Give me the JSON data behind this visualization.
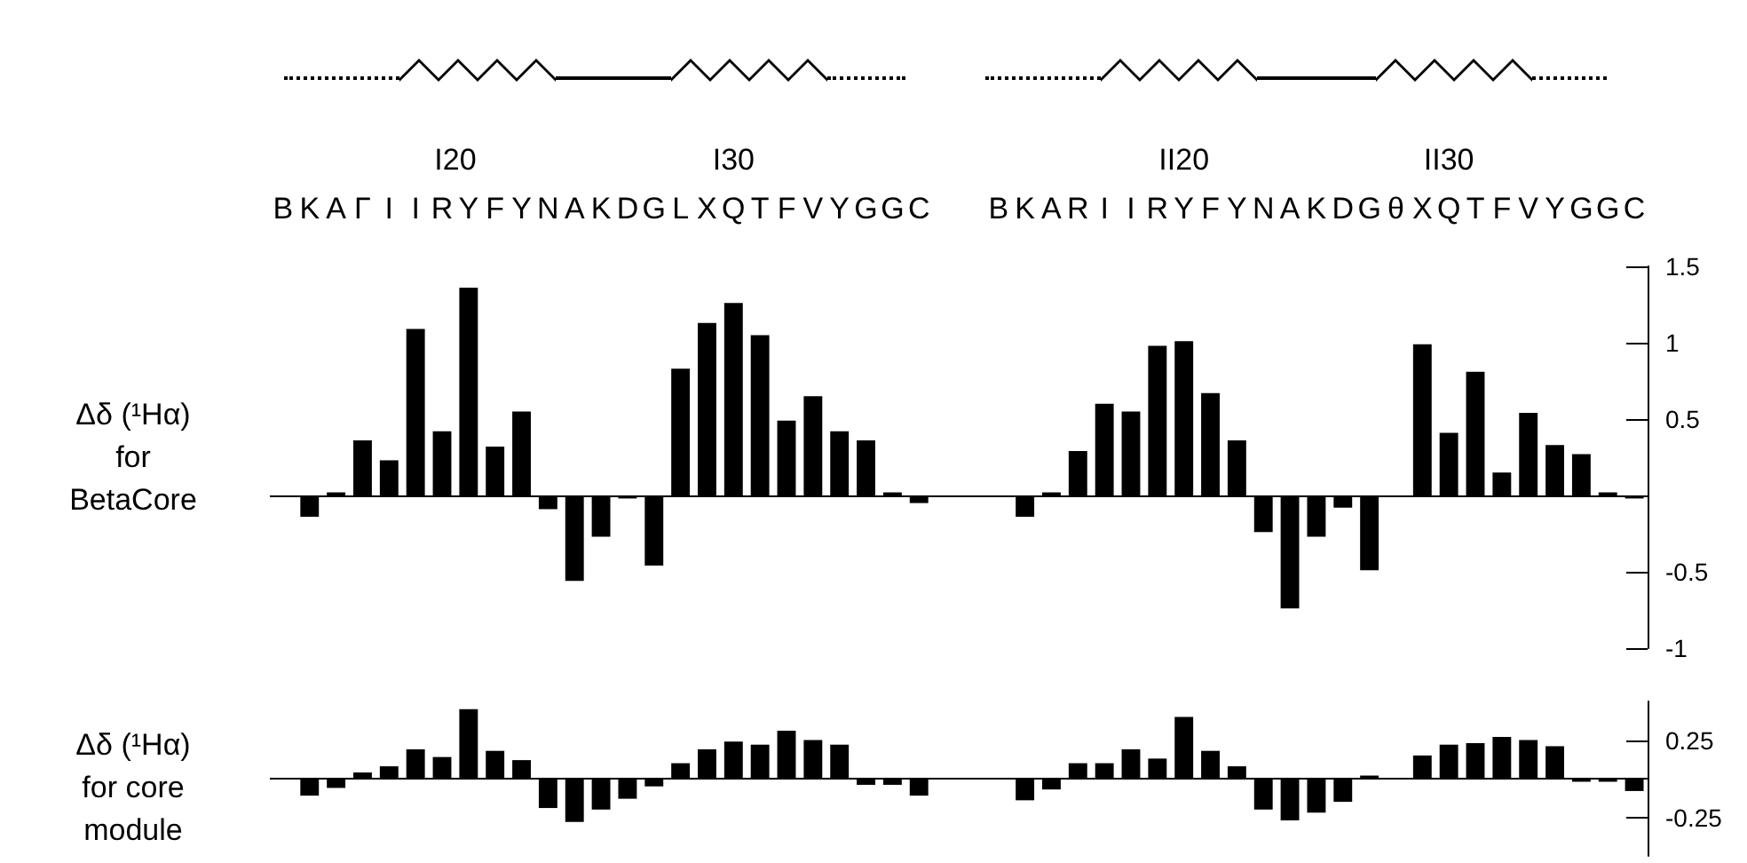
{
  "chart_data": [
    {
      "type": "bar",
      "ylabel": "Δδ (¹Hα) for BetaCore",
      "annotations": [
        "I20",
        "I30",
        "II20",
        "II30"
      ],
      "categories": [
        "B",
        "K",
        "A",
        "Γ",
        "I",
        "I",
        "R",
        "Y",
        "F",
        "Y",
        "N",
        "A",
        "K",
        "D",
        "G",
        "L",
        "X",
        "Q",
        "T",
        "F",
        "V",
        "Y",
        "G",
        "G",
        "C",
        null,
        null,
        "B",
        "K",
        "A",
        "R",
        "I",
        "I",
        "R",
        "Y",
        "F",
        "Y",
        "N",
        "A",
        "K",
        "D",
        "G",
        "θ",
        "X",
        "Q",
        "T",
        "F",
        "V",
        "Y",
        "G",
        "G",
        "C"
      ],
      "values": [
        null,
        -0.14,
        0.02,
        0.36,
        0.23,
        1.09,
        0.42,
        1.36,
        0.32,
        0.55,
        -0.09,
        -0.56,
        -0.27,
        -0.02,
        -0.46,
        0.83,
        1.13,
        1.26,
        1.05,
        0.49,
        0.65,
        0.42,
        0.36,
        0.02,
        -0.05,
        null,
        null,
        null,
        -0.14,
        0.02,
        0.29,
        0.6,
        0.55,
        0.98,
        1.01,
        0.67,
        0.36,
        -0.24,
        -0.74,
        -0.27,
        -0.08,
        -0.49,
        null,
        0.99,
        0.41,
        0.81,
        0.15,
        0.54,
        0.33,
        0.27,
        0.02,
        -0.02
      ],
      "color": "#000000",
      "ylim": [
        -1,
        1.5
      ],
      "yticks": [
        -1,
        -0.5,
        0.5,
        1,
        1.5
      ]
    },
    {
      "type": "bar",
      "ylabel": "Δδ (¹Hα) for core module",
      "tick_labels": "y",
      "categories": [
        null,
        null,
        null,
        null,
        null,
        null,
        null,
        null,
        null,
        null,
        null,
        null,
        null,
        null,
        null,
        null,
        null,
        null,
        null,
        null,
        null,
        null,
        null,
        null,
        null,
        null,
        null,
        null,
        null,
        null,
        null,
        null,
        null,
        null,
        null,
        null,
        null,
        null,
        null,
        null,
        null,
        null,
        null,
        null,
        null,
        null,
        null,
        null,
        null,
        null,
        null,
        null
      ],
      "values": [
        null,
        -0.11,
        -0.06,
        0.04,
        0.08,
        0.19,
        0.14,
        0.45,
        0.18,
        0.12,
        -0.19,
        -0.28,
        -0.2,
        -0.13,
        -0.05,
        0.1,
        0.19,
        0.24,
        0.22,
        0.31,
        0.25,
        0.22,
        -0.04,
        -0.04,
        -0.11,
        null,
        null,
        null,
        -0.14,
        -0.07,
        0.1,
        0.1,
        0.19,
        0.13,
        0.4,
        0.18,
        0.08,
        -0.2,
        -0.27,
        -0.22,
        -0.15,
        0.02,
        null,
        0.15,
        0.22,
        0.23,
        0.27,
        0.25,
        0.21,
        -0.02,
        -0.02,
        -0.08
      ],
      "color": "#000000",
      "ylim": [
        -0.5,
        0.5
      ],
      "yticks": [
        -0.25,
        0.25
      ]
    }
  ]
}
